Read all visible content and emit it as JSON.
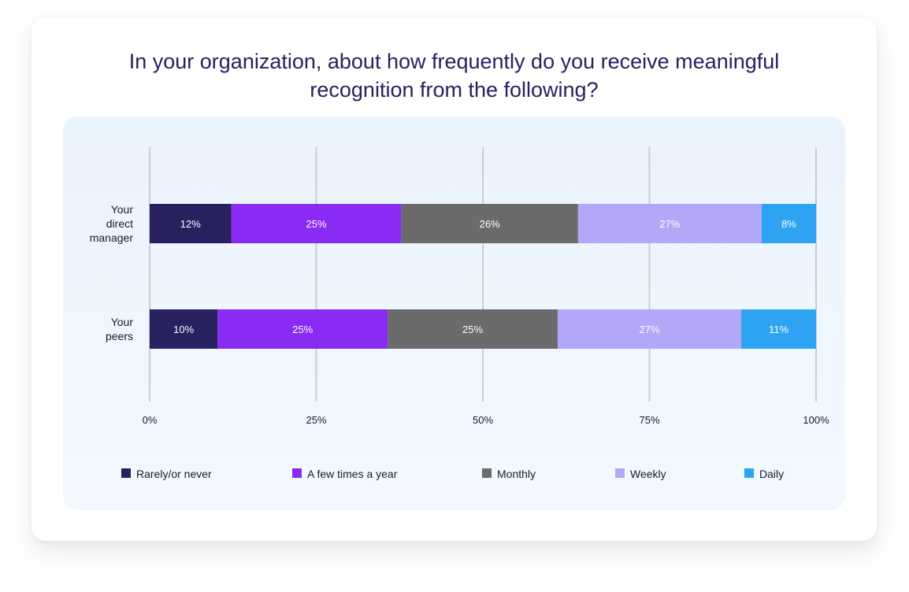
{
  "title_lines": [
    "In your organization, about how frequently do you receive meaningful",
    "recognition from the following?"
  ],
  "chart_data": {
    "type": "bar",
    "orientation": "horizontal",
    "stacked": true,
    "title": "In your organization, about how frequently do you receive meaningful recognition from the following?",
    "categories": [
      {
        "name": "Your direct manager",
        "label_lines": [
          "Your",
          "direct",
          "manager"
        ]
      },
      {
        "name": "Your peers",
        "label_lines": [
          "Your",
          "peers"
        ]
      }
    ],
    "series": [
      {
        "name": "Rarely/or never",
        "color": "#27215f",
        "values": [
          12,
          10
        ],
        "labels": [
          "12%",
          "10%"
        ]
      },
      {
        "name": "A few times a year",
        "color": "#8a2bf3",
        "values": [
          25,
          25
        ],
        "labels": [
          "25%",
          "25%"
        ]
      },
      {
        "name": "Monthly",
        "color": "#6b6b6b",
        "values": [
          26,
          25
        ],
        "labels": [
          "26%",
          "25%"
        ]
      },
      {
        "name": "Weekly",
        "color": "#b3a8f7",
        "values": [
          27,
          27
        ],
        "labels": [
          "27%",
          "27%"
        ]
      },
      {
        "name": "Daily",
        "color": "#2ea3f2",
        "values": [
          8,
          11
        ],
        "labels": [
          "8%",
          "11%"
        ]
      }
    ],
    "xlim": [
      0,
      100
    ],
    "x_ticks": [
      0,
      25,
      50,
      75,
      100
    ],
    "x_tick_labels": [
      "0%",
      "25%",
      "50%",
      "75%",
      "100%"
    ],
    "grid": true,
    "legend_position": "bottom"
  },
  "colors": {
    "title": "#27215f",
    "axis_text": "#1a1a2e",
    "grid": "#c8ccd4",
    "bar_text": "#ffffff"
  }
}
